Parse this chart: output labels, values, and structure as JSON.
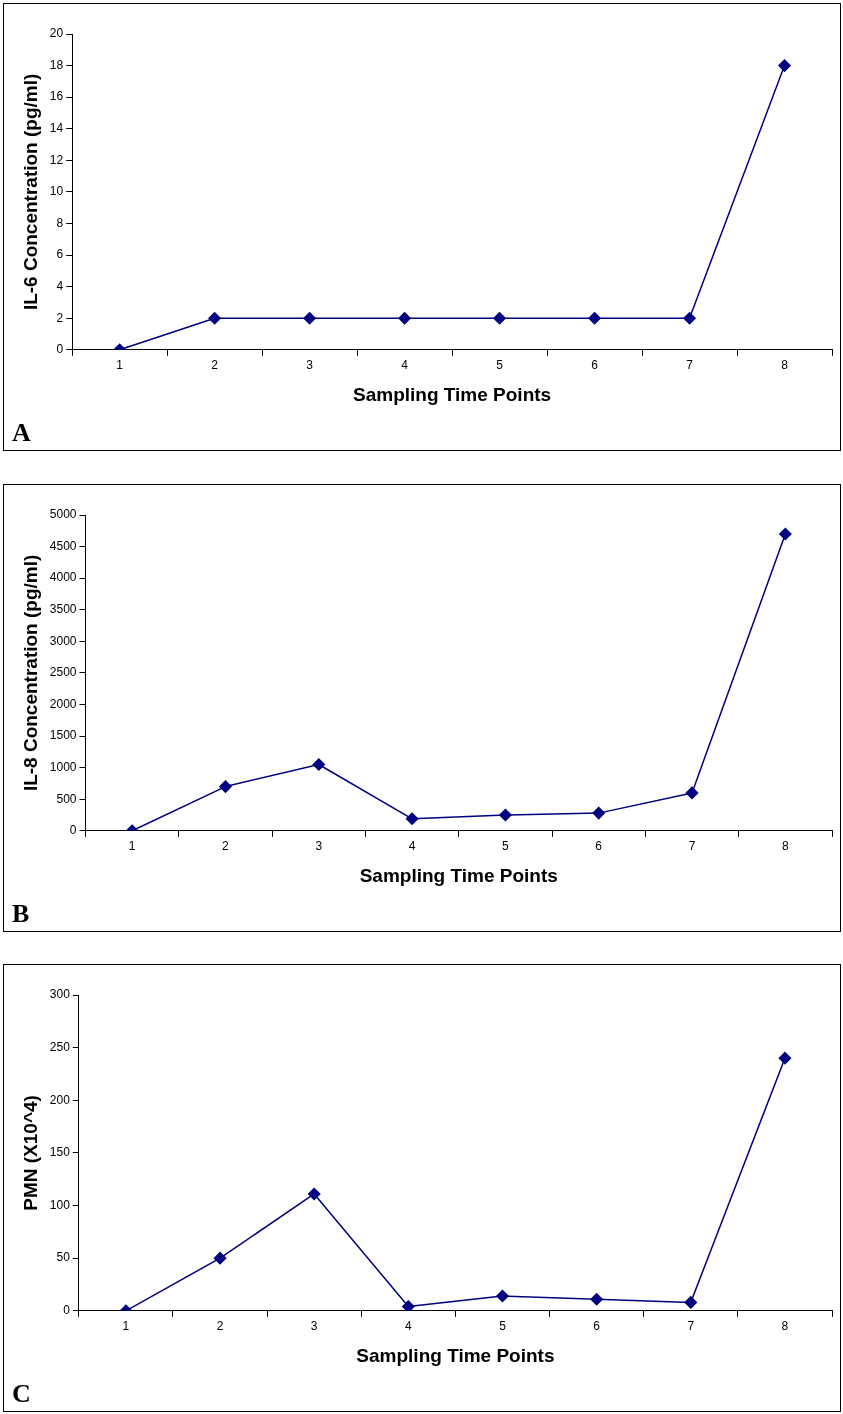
{
  "chart_data": [
    {
      "type": "line",
      "categories": [
        "1",
        "2",
        "3",
        "4",
        "5",
        "6",
        "7",
        "8"
      ],
      "xlabel": "Sampling Time Points",
      "ylabel": "IL-6 Concentration (pg/ml)",
      "series": [
        {
          "color": "#000080",
          "values": [
            0,
            2,
            2,
            2,
            2,
            2,
            2,
            18
          ]
        }
      ],
      "ylim": [
        0,
        20
      ],
      "yticks": [
        0,
        2,
        4,
        6,
        8,
        10,
        12,
        14,
        16,
        18,
        20
      ],
      "grid": false,
      "legend": false,
      "marker": "diamond",
      "line_style": "solid",
      "annotations": [
        "A"
      ]
    },
    {
      "type": "line",
      "categories": [
        "1",
        "2",
        "3",
        "4",
        "5",
        "6",
        "7",
        "8"
      ],
      "xlabel": "Sampling Time Points",
      "ylabel": "IL-8 Concentration (pg/ml)",
      "series": [
        {
          "color": "#000080",
          "values": [
            0,
            700,
            1050,
            190,
            250,
            280,
            600,
            4700
          ]
        }
      ],
      "ylim": [
        0,
        5000
      ],
      "yticks": [
        0,
        500,
        1000,
        1500,
        2000,
        2500,
        3000,
        3500,
        4000,
        4500,
        5000
      ],
      "grid": false,
      "legend": false,
      "marker": "diamond",
      "line_style": "solid",
      "annotations": [
        "B"
      ]
    },
    {
      "type": "line",
      "categories": [
        "1",
        "2",
        "3",
        "4",
        "5",
        "6",
        "7",
        "8"
      ],
      "xlabel": "Sampling Time Points",
      "ylabel": "PMN (X10^4)",
      "series": [
        {
          "color": "#000080",
          "values": [
            0,
            50,
            111,
            4,
            14,
            11,
            8,
            240
          ]
        }
      ],
      "ylim": [
        0,
        300
      ],
      "yticks": [
        0,
        50,
        100,
        150,
        200,
        250,
        300
      ],
      "grid": false,
      "legend": false,
      "marker": "diamond",
      "line_style": "solid",
      "annotations": [
        "C"
      ]
    }
  ]
}
